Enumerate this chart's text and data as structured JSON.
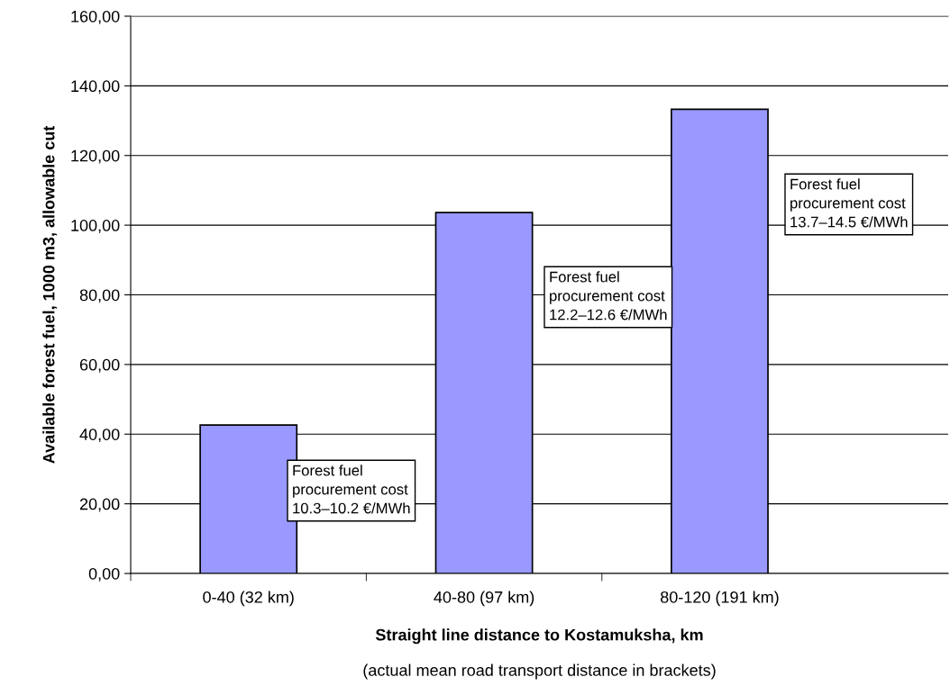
{
  "chart_data": {
    "type": "bar",
    "xlabel": "Straight line distance to Kostamuksha, km",
    "ylabel": "Available forest fuel, 1000 m3, allowable cut",
    "categories": [
      "0-40 (32 km)",
      "40-80 (97 km)",
      "80-120 (191 km)"
    ],
    "values": [
      42.6,
      103.6,
      133.3
    ],
    "color": "#9999ff",
    "ylim": [
      0,
      160
    ],
    "yticks": [
      {
        "value": 0,
        "label": "0,00"
      },
      {
        "value": 20,
        "label": "20,00"
      },
      {
        "value": 40,
        "label": "40,00"
      },
      {
        "value": 60,
        "label": "60,00"
      },
      {
        "value": 80,
        "label": "80,00"
      },
      {
        "value": 100,
        "label": "100,00"
      },
      {
        "value": 120,
        "label": "120,00"
      },
      {
        "value": 140,
        "label": "140,00"
      },
      {
        "value": 160,
        "label": "160,00"
      }
    ],
    "grid": "y",
    "legend": false,
    "annotations": [
      "Forest fuel\nprocurement cost\n10.3–10.2 €/MWh",
      "Forest fuel\nprocurement cost\n12.2–12.6 €/MWh",
      "Forest fuel\nprocurement cost\n13.7–14.5 €/MWh",
      "(actual mean road transport distance in brackets)"
    ]
  }
}
